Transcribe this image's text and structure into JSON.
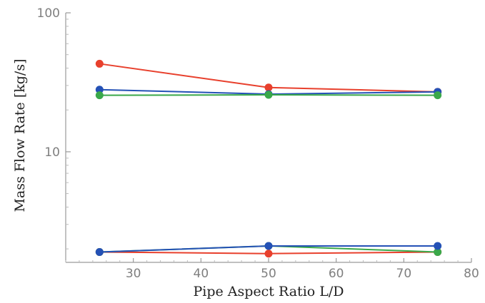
{
  "chart_data": {
    "type": "line",
    "title": "",
    "xlabel": "Pipe Aspect Ratio L/D",
    "ylabel": "Mass Flow Rate [kg/s]",
    "xlim": [
      20,
      80
    ],
    "ylim": [
      1.6,
      100
    ],
    "yscale": "log",
    "x_ticks": [
      30,
      40,
      50,
      60,
      70,
      80
    ],
    "y_ticks": [
      10,
      100
    ],
    "grid": false,
    "series": [
      {
        "color": "#e8402d",
        "x": [
          25,
          50,
          75
        ],
        "y": [
          43,
          29,
          27
        ]
      },
      {
        "color": "#2451b6",
        "x": [
          25,
          50,
          75
        ],
        "y": [
          28,
          26,
          27
        ]
      },
      {
        "color": "#3aa84a",
        "x": [
          25,
          50,
          75
        ],
        "y": [
          25.5,
          25.7,
          25.5
        ]
      },
      {
        "color": "#e8402d",
        "x": [
          25,
          50,
          75
        ],
        "y": [
          1.9,
          1.85,
          1.9
        ]
      },
      {
        "color": "#3aa84a",
        "x": [
          25,
          50,
          75
        ],
        "y": [
          1.9,
          2.1,
          1.9
        ]
      },
      {
        "color": "#2451b6",
        "x": [
          25,
          50,
          75
        ],
        "y": [
          1.9,
          2.1,
          2.1
        ]
      }
    ]
  }
}
